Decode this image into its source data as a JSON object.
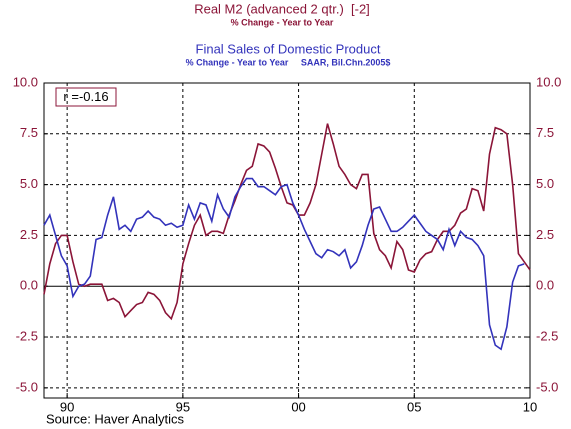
{
  "chart_data": {
    "type": "line",
    "x": [
      1989,
      1989.25,
      1989.5,
      1989.75,
      1990,
      1990.25,
      1990.5,
      1990.75,
      1991,
      1991.25,
      1991.5,
      1991.75,
      1992,
      1992.25,
      1992.5,
      1992.75,
      1993,
      1993.25,
      1993.5,
      1993.75,
      1994,
      1994.25,
      1994.5,
      1994.75,
      1995,
      1995.25,
      1995.5,
      1995.75,
      1996,
      1996.25,
      1996.5,
      1996.75,
      1997,
      1997.25,
      1997.5,
      1997.75,
      1998,
      1998.25,
      1998.5,
      1998.75,
      1999,
      1999.25,
      1999.5,
      1999.75,
      2000,
      2000.25,
      2000.5,
      2000.75,
      2001,
      2001.25,
      2001.5,
      2001.75,
      2002,
      2002.25,
      2002.5,
      2002.75,
      2003,
      2003.25,
      2003.5,
      2003.75,
      2004,
      2004.25,
      2004.5,
      2004.75,
      2005,
      2005.25,
      2005.5,
      2005.75,
      2006,
      2006.25,
      2006.5,
      2006.75,
      2007,
      2007.25,
      2007.5,
      2007.75,
      2008,
      2008.25,
      2008.5,
      2008.75,
      2009,
      2009.25,
      2009.5,
      2009.75,
      2010
    ],
    "series": [
      {
        "name": "Real M2 (advanced 2 qtr.)  [-2]",
        "units": "% Change - Year to Year",
        "color": "#8b1538",
        "values": [
          -0.4,
          1.1,
          2.1,
          2.5,
          2.5,
          1.2,
          0.1,
          0.0,
          0.1,
          0.1,
          0.1,
          -0.7,
          -0.6,
          -0.8,
          -1.5,
          -1.2,
          -0.9,
          -0.8,
          -0.3,
          -0.4,
          -0.7,
          -1.3,
          -1.6,
          -0.8,
          1.1,
          2.1,
          3.0,
          3.5,
          2.5,
          2.7,
          2.7,
          2.6,
          3.5,
          4.2,
          5.0,
          5.7,
          5.9,
          7.0,
          6.9,
          6.6,
          5.8,
          4.9,
          4.1,
          4.0,
          3.5,
          3.5,
          4.1,
          5.0,
          6.5,
          8.0,
          7.0,
          5.9,
          5.5,
          5.0,
          4.8,
          5.5,
          5.5,
          2.6,
          1.8,
          1.5,
          0.9,
          2.2,
          1.8,
          0.8,
          0.7,
          1.3,
          1.6,
          1.7,
          2.3,
          2.7,
          2.7,
          3.0,
          3.6,
          3.8,
          4.8,
          4.7,
          3.7,
          6.5,
          7.8,
          7.7,
          7.5,
          5.0,
          1.6,
          1.2,
          0.8
        ]
      },
      {
        "name": "Final Sales of Domestic Product",
        "units": "% Change - Year to Year     SAAR, Bil.Chn.2005$",
        "color": "#3333bb",
        "values": [
          3.0,
          3.5,
          2.5,
          1.5,
          1.0,
          -0.5,
          0.0,
          0.1,
          0.5,
          2.3,
          2.4,
          3.5,
          4.4,
          2.8,
          3.0,
          2.7,
          3.3,
          3.4,
          3.7,
          3.4,
          3.3,
          3.0,
          3.1,
          2.9,
          3.0,
          4.0,
          3.3,
          4.1,
          4.0,
          3.2,
          4.5,
          3.8,
          3.4,
          4.4,
          4.9,
          5.3,
          5.3,
          4.9,
          4.9,
          4.7,
          4.5,
          4.9,
          5.0,
          4.1,
          3.5,
          2.8,
          2.2,
          1.6,
          1.4,
          1.8,
          1.7,
          1.5,
          1.8,
          0.9,
          1.2,
          2.0,
          3.0,
          3.8,
          3.9,
          3.3,
          2.7,
          2.7,
          2.9,
          3.2,
          3.5,
          3.1,
          2.7,
          2.5,
          2.3,
          1.8,
          2.8,
          2.0,
          2.7,
          2.4,
          2.3,
          2.0,
          1.5,
          -1.9,
          -2.9,
          -3.1,
          -2.0,
          0.2,
          1.0,
          1.1,
          null
        ]
      }
    ],
    "xlim": [
      1989,
      2010
    ],
    "xticks": [
      {
        "value": 1990,
        "label": "90"
      },
      {
        "value": 1995,
        "label": "95"
      },
      {
        "value": 2000,
        "label": "00"
      },
      {
        "value": 2005,
        "label": "05"
      },
      {
        "value": 2010,
        "label": "10"
      }
    ],
    "ylim": [
      -5.5,
      10
    ],
    "yticks": [
      {
        "value": 10,
        "label": "10.0"
      },
      7.5,
      {
        "value": 5,
        "label": "5.0"
      },
      2.5,
      {
        "value": 0,
        "label": "0.0"
      },
      -2.5,
      {
        "value": -5,
        "label": "-5.0"
      }
    ],
    "y2lim": [
      -5.5,
      10
    ],
    "y2ticks": [
      {
        "value": 10,
        "label": "10.0"
      },
      7.5,
      {
        "value": 5,
        "label": "5.0"
      },
      2.5,
      {
        "value": 0,
        "label": "0.0"
      },
      -2.5,
      {
        "value": -5,
        "label": "-5.0"
      }
    ],
    "grid": true,
    "annotation": "r =-0.16",
    "source": "Source: Haver Analytics"
  }
}
